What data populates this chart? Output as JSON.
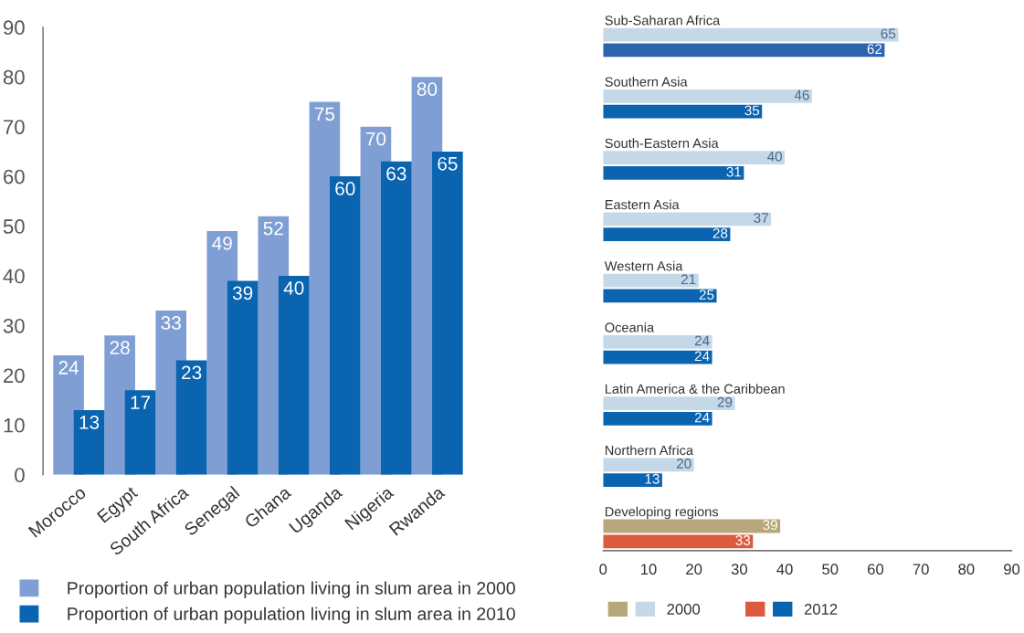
{
  "chart_data": [
    {
      "type": "bar",
      "categories": [
        "Morocco",
        "Egypt",
        "South Africa",
        "Senegal",
        "Ghana",
        "Uganda",
        "Nigeria",
        "Rwanda"
      ],
      "series": [
        {
          "name": "Proportion of urban population living in slum area in 2000",
          "color": "#7f9fd4",
          "values": [
            24,
            28,
            33,
            49,
            52,
            75,
            70,
            80
          ]
        },
        {
          "name": "Proportion of urban population living in slum area in 2010",
          "color": "#0a64b0",
          "values": [
            13,
            17,
            23,
            39,
            40,
            60,
            63,
            65
          ]
        }
      ],
      "ylim": [
        0,
        90
      ],
      "yticks": [
        0,
        10,
        20,
        30,
        40,
        50,
        60,
        70,
        80,
        90
      ],
      "data_labels": true,
      "legend": "bottom",
      "grid": false
    },
    {
      "type": "bar",
      "orientation": "horizontal",
      "categories": [
        "Sub-Saharan Africa",
        "Southern Asia",
        "South-Eastern Asia",
        "Eastern Asia",
        "Western Asia",
        "Oceania",
        "Latin America & the Caribbean",
        "Northern Africa",
        "Developing regions"
      ],
      "series": [
        {
          "name": "2000",
          "colors": [
            "#c5d8e8",
            "#c5d8e8",
            "#c5d8e8",
            "#c5d8e8",
            "#c5d8e8",
            "#c5d8e8",
            "#c5d8e8",
            "#c5d8e8",
            "#b8a77a"
          ],
          "values": [
            65,
            46,
            40,
            37,
            21,
            24,
            29,
            20,
            39
          ]
        },
        {
          "name": "2012",
          "colors": [
            "#2e63b0",
            "#0a64b0",
            "#0a64b0",
            "#0a64b0",
            "#0a64b0",
            "#0a64b0",
            "#0a64b0",
            "#0a64b0",
            "#dc5a40"
          ],
          "values": [
            62,
            35,
            31,
            28,
            25,
            24,
            24,
            13,
            33
          ]
        }
      ],
      "xlim": [
        0,
        90
      ],
      "xticks": [
        0,
        10,
        20,
        30,
        40,
        50,
        60,
        70,
        80,
        90
      ],
      "data_labels": true,
      "legend": "bottom",
      "tick_labels": "x",
      "grid": false
    }
  ]
}
